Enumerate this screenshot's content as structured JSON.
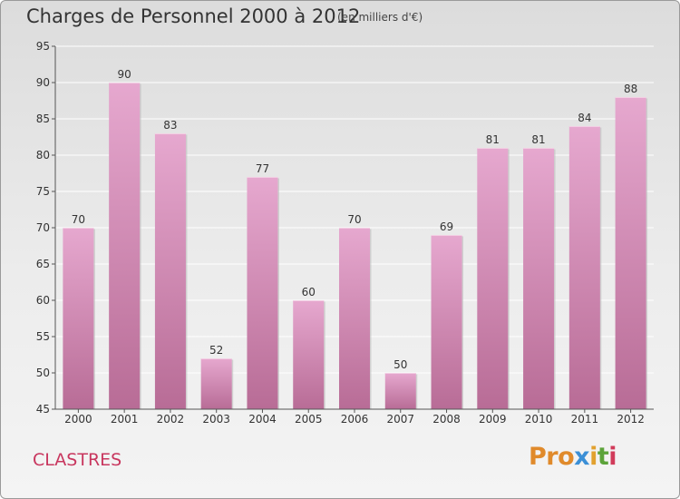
{
  "title": "Charges de Personnel 2000 à 2012",
  "subtitle": "(en milliers d'€)",
  "commune": "CLASTRES",
  "logo": [
    "Pro",
    "x",
    "i",
    "t",
    "i"
  ],
  "colors": {
    "bar_light": "#e6a8cf",
    "bar_dark": "#b86c96",
    "axis": "#555555",
    "grid": "#ffffff",
    "commune": "#c8365e"
  },
  "chart_data": {
    "type": "bar",
    "categories": [
      "2000",
      "2001",
      "2002",
      "2003",
      "2004",
      "2005",
      "2006",
      "2007",
      "2008",
      "2009",
      "2010",
      "2011",
      "2012"
    ],
    "values": [
      70,
      90,
      83,
      52,
      77,
      60,
      70,
      50,
      69,
      81,
      81,
      84,
      88
    ],
    "ylim": [
      45,
      95
    ],
    "yticks": [
      45,
      50,
      55,
      60,
      65,
      70,
      75,
      80,
      85,
      90,
      95
    ],
    "grid": true,
    "data_labels": true
  }
}
